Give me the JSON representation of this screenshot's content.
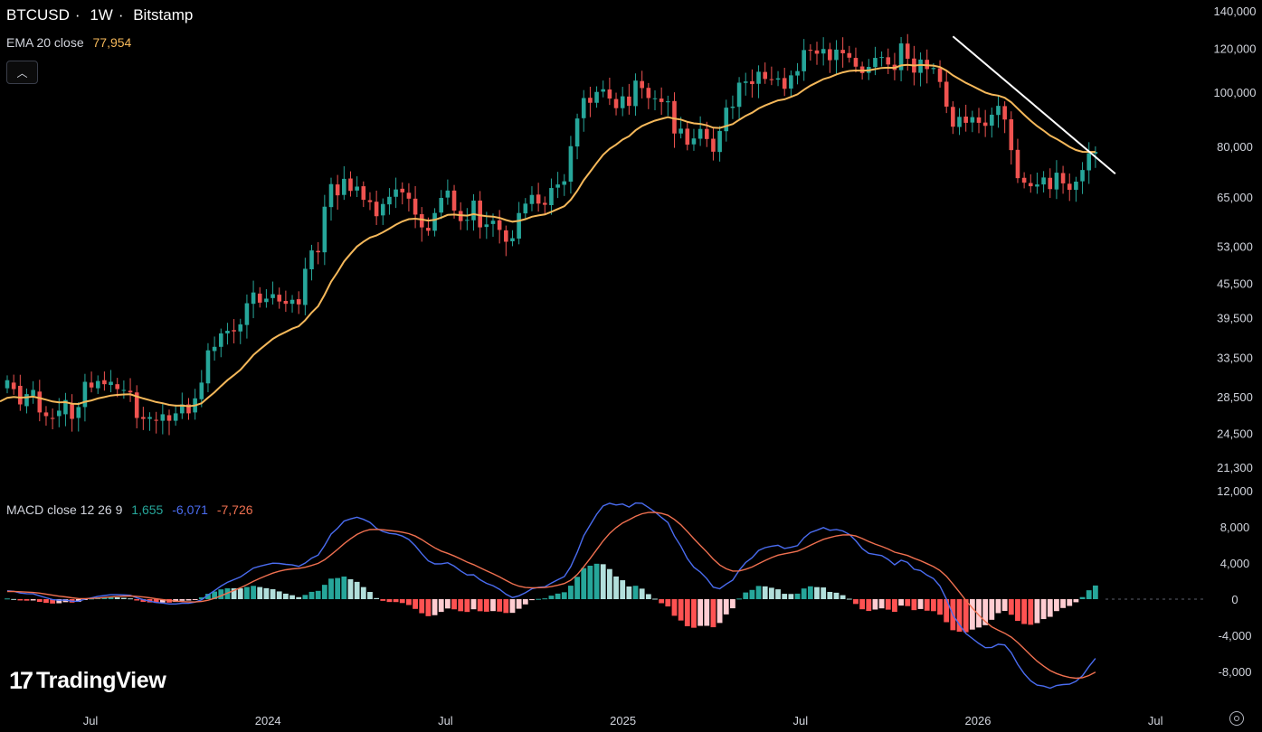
{
  "header": {
    "symbol": "BTCUSD",
    "separator": "·",
    "interval": "1W",
    "exchange": "Bitstamp"
  },
  "ema": {
    "label": "EMA 20 close",
    "value": "77,954",
    "color": "#f5b85a"
  },
  "macd": {
    "label": "MACD close 12 26 9",
    "histogram_value": "1,655",
    "macd_value": "-6,071",
    "signal_value": "-7,726",
    "macd_color": "#4a6cf0",
    "signal_color": "#f07050",
    "hist_color": "#26a69a"
  },
  "brand": {
    "logo_mark": "17",
    "name": "TradingView"
  },
  "colors": {
    "up": "#26a69a",
    "down": "#ef5350",
    "ema": "#f5b85a",
    "trendline": "#ffffff"
  },
  "chart_data": {
    "type": "candlestick",
    "scale": "log",
    "price_axis": {
      "ticks": [
        21300,
        24500,
        28500,
        33500,
        39500,
        45500,
        53000,
        65000,
        80000,
        100000,
        120000,
        140000
      ],
      "tick_labels": [
        "21,300",
        "24,500",
        "28,500",
        "33,500",
        "39,500",
        "45,500",
        "53,000",
        "65,000",
        "80,000",
        "100,000",
        "120,000",
        "140,000"
      ]
    },
    "time_axis": {
      "labels": [
        "Jul",
        "2024",
        "Jul",
        "2025",
        "Jul",
        "2026",
        "Jul"
      ]
    },
    "price_series": [
      [
        29500,
        30500
      ],
      [
        30200,
        29400
      ],
      [
        29800,
        27600
      ],
      [
        27400,
        28800
      ],
      [
        28600,
        29300
      ],
      [
        29100,
        26700
      ],
      [
        26700,
        26300
      ],
      [
        26100,
        26000
      ],
      [
        26300,
        26900
      ],
      [
        26500,
        28100
      ],
      [
        27600,
        26000
      ],
      [
        26100,
        27300
      ],
      [
        27300,
        30300
      ],
      [
        30200,
        29600
      ],
      [
        29500,
        30400
      ],
      [
        30500,
        30000
      ],
      [
        29900,
        30300
      ],
      [
        30000,
        29400
      ],
      [
        29300,
        29300
      ],
      [
        29200,
        29000
      ],
      [
        29000,
        26100
      ],
      [
        26200,
        26000
      ],
      [
        26000,
        26200
      ],
      [
        25900,
        25800
      ],
      [
        25800,
        26500
      ],
      [
        26400,
        25800
      ],
      [
        25800,
        26600
      ],
      [
        26600,
        27600
      ],
      [
        27600,
        26600
      ],
      [
        26700,
        28300
      ],
      [
        28200,
        30200
      ],
      [
        30100,
        34500
      ],
      [
        34400,
        35000
      ],
      [
        35000,
        37000
      ],
      [
        37000,
        37400
      ],
      [
        37500,
        37300
      ],
      [
        37300,
        38400
      ],
      [
        38300,
        41900
      ],
      [
        41800,
        43800
      ],
      [
        43600,
        42000
      ],
      [
        42100,
        42700
      ],
      [
        42800,
        43500
      ],
      [
        43400,
        42200
      ],
      [
        42300,
        41800
      ],
      [
        41800,
        42500
      ],
      [
        42600,
        41700
      ],
      [
        41600,
        48300
      ],
      [
        48200,
        52100
      ],
      [
        52000,
        51700
      ],
      [
        51700,
        62400
      ],
      [
        62300,
        68500
      ],
      [
        68400,
        65400
      ],
      [
        65500,
        70000
      ],
      [
        70100,
        66600
      ],
      [
        66700,
        67800
      ],
      [
        67900,
        64200
      ],
      [
        64100,
        63600
      ],
      [
        63700,
        60000
      ],
      [
        60200,
        63100
      ],
      [
        63000,
        65000
      ],
      [
        65000,
        67000
      ],
      [
        67200,
        66200
      ],
      [
        66100,
        64500
      ],
      [
        64500,
        60400
      ],
      [
        60500,
        57300
      ],
      [
        57200,
        56500
      ],
      [
        56500,
        60800
      ],
      [
        60900,
        64700
      ],
      [
        64800,
        66700
      ],
      [
        66700,
        61400
      ],
      [
        61300,
        58800
      ],
      [
        58900,
        59100
      ],
      [
        59000,
        64000
      ],
      [
        64000,
        57300
      ],
      [
        57400,
        58000
      ],
      [
        58100,
        58900
      ],
      [
        59000,
        56700
      ],
      [
        56600,
        54000
      ],
      [
        54100,
        54800
      ],
      [
        54700,
        60800
      ],
      [
        60700,
        63200
      ],
      [
        63100,
        65500
      ],
      [
        65600,
        63200
      ],
      [
        63400,
        62900
      ],
      [
        62800,
        67400
      ],
      [
        67500,
        68400
      ],
      [
        68300,
        69300
      ],
      [
        69200,
        80100
      ],
      [
        80000,
        89800
      ],
      [
        89900,
        97700
      ],
      [
        97800,
        95800
      ],
      [
        95800,
        100200
      ],
      [
        100300,
        101300
      ],
      [
        101200,
        97500
      ],
      [
        97300,
        93700
      ],
      [
        93700,
        98400
      ],
      [
        98300,
        94600
      ],
      [
        94500,
        105000
      ],
      [
        104800,
        101800
      ],
      [
        101900,
        97700
      ],
      [
        97600,
        97600
      ],
      [
        97500,
        96100
      ],
      [
        96000,
        96400
      ],
      [
        96500,
        84400
      ],
      [
        84400,
        86100
      ],
      [
        86100,
        80600
      ],
      [
        80700,
        82700
      ],
      [
        82600,
        86000
      ],
      [
        86000,
        82500
      ],
      [
        82600,
        78300
      ],
      [
        78200,
        85300
      ],
      [
        85200,
        93900
      ],
      [
        93800,
        94300
      ],
      [
        94200,
        104100
      ],
      [
        104000,
        104600
      ],
      [
        104700,
        103500
      ],
      [
        103600,
        108900
      ],
      [
        108800,
        105700
      ],
      [
        105600,
        105500
      ],
      [
        105400,
        106000
      ],
      [
        106100,
        101500
      ],
      [
        101600,
        107300
      ],
      [
        107200,
        109200
      ],
      [
        109100,
        119100
      ],
      [
        119200,
        119000
      ],
      [
        118900,
        117300
      ],
      [
        117400,
        119600
      ],
      [
        119500,
        114200
      ],
      [
        114300,
        119300
      ],
      [
        119200,
        117500
      ],
      [
        117600,
        115400
      ],
      [
        115300,
        111200
      ],
      [
        111300,
        108300
      ],
      [
        108400,
        111100
      ],
      [
        111000,
        115300
      ],
      [
        115400,
        115700
      ],
      [
        115600,
        112200
      ],
      [
        112100,
        109700
      ],
      [
        109600,
        122400
      ],
      [
        122300,
        114900
      ],
      [
        115000,
        108500
      ],
      [
        108400,
        114500
      ],
      [
        114400,
        110100
      ],
      [
        110100,
        110600
      ],
      [
        110500,
        104400
      ],
      [
        104500,
        94300
      ],
      [
        94200,
        86800
      ],
      [
        86700,
        90400
      ],
      [
        90500,
        88200
      ],
      [
        88300,
        90300
      ],
      [
        90200,
        88200
      ],
      [
        88300,
        87100
      ],
      [
        87200,
        91200
      ],
      [
        91100,
        94600
      ],
      [
        94500,
        89400
      ],
      [
        89500,
        78800
      ],
      [
        78900,
        70200
      ],
      [
        70300,
        68900
      ],
      [
        68800,
        67900
      ],
      [
        67800,
        68400
      ],
      [
        68400,
        70400
      ],
      [
        70300,
        67100
      ],
      [
        67000,
        71800
      ],
      [
        71700,
        68700
      ],
      [
        68600,
        66900
      ],
      [
        66900,
        69200
      ],
      [
        69300,
        72600
      ],
      [
        72500,
        77800
      ],
      [
        77700,
        78200
      ]
    ],
    "indicators": [
      "EMA 20 close",
      "MACD close 12 26 9"
    ],
    "macd_axis": {
      "ticks": [
        -8000,
        -4000,
        0,
        4000,
        8000,
        12000
      ],
      "tick_labels": [
        "-8,000",
        "-4,000",
        "0",
        "4,000",
        "8,000",
        "12,000"
      ]
    },
    "trendline": {
      "from": {
        "bar": 146,
        "price": 126000
      },
      "to": {
        "bar": 168,
        "price": 71500
      }
    }
  }
}
